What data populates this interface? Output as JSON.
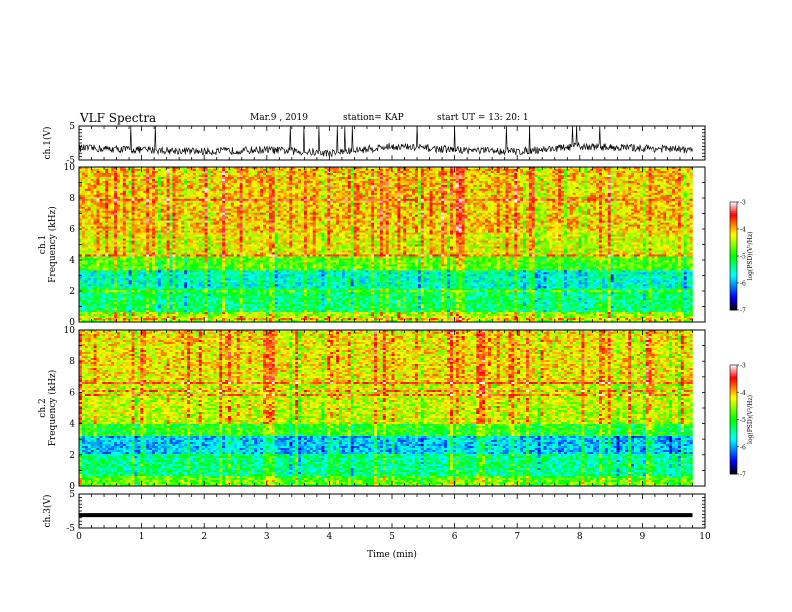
{
  "header": {
    "title": "VLF Spectra",
    "date": "Mar.9  , 2019",
    "station": "station= KAP",
    "start": "start  UT  =   13: 20: 1"
  },
  "colors": {
    "line": "#000000",
    "spectrogram_cmap": [
      "#000000",
      "#0000ff",
      "#00ffff",
      "#00ff00",
      "#ffff00",
      "#ff0000",
      "#ffffff"
    ]
  },
  "chart_data": [
    {
      "type": "line",
      "panel": "ch1-voltage",
      "ylabel": "ch.1(V)",
      "ylim": [
        -5,
        5
      ],
      "yticks": [
        "5",
        "-5"
      ],
      "description_values": {
        "x": [
          0,
          1,
          2,
          3,
          4,
          5,
          6,
          7,
          8,
          9,
          9.8
        ],
        "y": [
          -1.5,
          -2,
          -2.5,
          -2,
          -3,
          -1,
          -2,
          -2.5,
          -1,
          -1.5,
          -2
        ]
      }
    },
    {
      "type": "heatmap",
      "panel": "ch1-spectrogram",
      "ylabel": "ch.1\nFrequency (kHz)",
      "ylim": [
        0,
        10
      ],
      "yticks": [
        "0",
        "2",
        "4",
        "6",
        "8",
        "10"
      ],
      "colorbar": {
        "label": "log(PSD)(V²/Hz)",
        "range": [
          -7,
          -3
        ],
        "ticks": [
          "-3",
          "-4",
          "-5",
          "-6",
          "-7"
        ]
      },
      "bands": [
        {
          "from": 0,
          "to": 0.6,
          "level": -4.5
        },
        {
          "from": 0.6,
          "to": 2.2,
          "level": -5.3
        },
        {
          "from": 2.2,
          "to": 3.3,
          "level": -5.6
        },
        {
          "from": 3.3,
          "to": 4.2,
          "level": -4.8
        },
        {
          "from": 4.2,
          "to": 5.8,
          "level": -4.3
        },
        {
          "from": 5.8,
          "to": 10,
          "level": -4.1
        }
      ]
    },
    {
      "type": "heatmap",
      "panel": "ch2-spectrogram",
      "ylabel": "ch.2\nFrequency (kHz)",
      "ylim": [
        0,
        10
      ],
      "yticks": [
        "0",
        "2",
        "4",
        "6",
        "8",
        "10"
      ],
      "colorbar": {
        "label": "log(PSD)(V²/Hz)",
        "range": [
          -7,
          -3
        ],
        "ticks": [
          "-3",
          "-4",
          "-5",
          "-6",
          "-7"
        ]
      },
      "bands": [
        {
          "from": 0,
          "to": 0.5,
          "level": -4.8
        },
        {
          "from": 0.5,
          "to": 2.0,
          "level": -5.4
        },
        {
          "from": 2.0,
          "to": 3.2,
          "level": -5.9
        },
        {
          "from": 3.2,
          "to": 4.0,
          "level": -5.0
        },
        {
          "from": 4.0,
          "to": 6.5,
          "level": -4.4
        },
        {
          "from": 6.5,
          "to": 10,
          "level": -4.2
        }
      ]
    },
    {
      "type": "line",
      "panel": "ch3-voltage",
      "ylabel": "ch.3(V)",
      "ylim": [
        -5,
        5
      ],
      "yticks": [
        "5",
        "-5"
      ],
      "x": [
        0,
        9.8
      ],
      "y": [
        -1.2,
        -1.2
      ]
    }
  ],
  "xaxis": {
    "label": "Time  (min)",
    "ticks": [
      "0",
      "1",
      "2",
      "3",
      "4",
      "5",
      "6",
      "7",
      "8",
      "9",
      "10"
    ],
    "range": [
      0,
      10
    ],
    "data_end": 9.8
  }
}
